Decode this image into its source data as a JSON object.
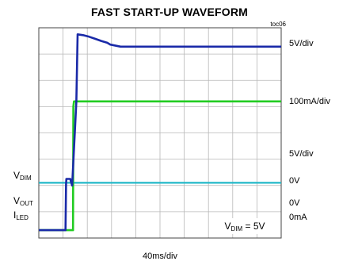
{
  "title": "FAST START-UP WAVEFORM",
  "figure_tag": "toc06",
  "time_scale": "40ms/div",
  "colors": {
    "vout": "#1a2aa8",
    "iled": "#22cc22",
    "vdim": "#22b8c8",
    "grid": "#b8b8b8",
    "frame": "#444444"
  },
  "chart_data": {
    "type": "line",
    "title": "FAST START-UP WAVEFORM",
    "x_unit": "ms",
    "xlim": [
      0,
      400
    ],
    "y_unit": "div",
    "ylim": [
      0,
      8
    ],
    "grid": true,
    "grid_divisions": {
      "x": 10,
      "y": 8
    },
    "time_per_div": "40ms/div",
    "annotation": {
      "label": "V",
      "sub": "DIM",
      "tail": " = 5V"
    },
    "series": [
      {
        "name": "V_OUT",
        "scale": "5V/div",
        "ground_label": "0V",
        "x": [
          0,
          44,
          45,
          45.5,
          52,
          53,
          55,
          62,
          64,
          73,
          83,
          93,
          103,
          113,
          118,
          135,
          230,
          400
        ],
        "y": [
          0.3,
          0.3,
          2.05,
          2.25,
          2.25,
          2.15,
          2.0,
          5.2,
          7.75,
          7.72,
          7.66,
          7.58,
          7.5,
          7.43,
          7.36,
          7.28,
          7.28,
          7.28
        ]
      },
      {
        "name": "I_LED",
        "scale": "100mA/div",
        "ground_label": "0mA",
        "x": [
          0,
          56.5,
          57,
          58,
          400
        ],
        "y": [
          0.3,
          0.3,
          5.0,
          5.2,
          5.2
        ]
      },
      {
        "name": "V_DIM",
        "scale": "5V/div",
        "ground_label": "0V",
        "x": [
          0,
          400
        ],
        "y": [
          2.1,
          2.1
        ]
      }
    ]
  },
  "left_labels": [
    {
      "main": "V",
      "sub": "DIM"
    },
    {
      "main": "V",
      "sub": "OUT"
    },
    {
      "main": "I",
      "sub": "LED"
    }
  ]
}
